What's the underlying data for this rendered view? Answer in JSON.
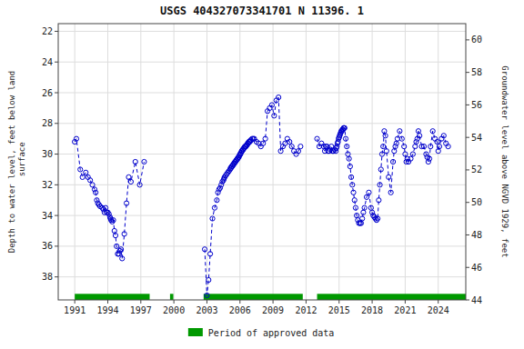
{
  "chart_data": {
    "type": "line",
    "title": "USGS 404327073341701 N 11396. 1",
    "ylabel": "Depth to water level, feet below land\n surface",
    "y2label": "Groundwater level above NGVD 1929, feet",
    "xlim": [
      1989.5,
      2026.5
    ],
    "xticks": [
      1991,
      1994,
      1997,
      2000,
      2003,
      2006,
      2009,
      2012,
      2015,
      2018,
      2021,
      2024
    ],
    "ylim": [
      39.5,
      21.5
    ],
    "yticks": [
      22,
      24,
      26,
      28,
      30,
      32,
      34,
      36,
      38
    ],
    "y2lim": [
      44.0,
      61.0
    ],
    "y2ticks": [
      44,
      46,
      48,
      50,
      52,
      54,
      56,
      58,
      60
    ],
    "grid": true,
    "legend": "bottom",
    "series": [
      {
        "color": "#0000cc",
        "marker": "circle",
        "line_style": "dashed",
        "x": [
          1991.0,
          1991.15,
          1991.5,
          1991.7,
          1992.0,
          1992.2,
          1992.4,
          1992.6,
          1992.8,
          1992.9,
          1993.0,
          1993.1,
          1993.2,
          1993.3,
          1993.5,
          1993.6,
          1993.7,
          1993.8,
          1993.9,
          1994.0,
          1994.1,
          1994.2,
          1994.25,
          1994.3,
          1994.4,
          1994.5,
          1994.6,
          1994.7,
          1994.8,
          1994.9,
          1995.0,
          1995.1,
          1995.2,
          1995.3,
          1995.5,
          1995.7,
          1995.9,
          1996.1,
          1996.5,
          1996.9,
          1997.3
        ],
        "values": [
          29.2,
          29.0,
          31.0,
          31.5,
          31.2,
          31.5,
          31.7,
          32.0,
          32.3,
          32.5,
          33.0,
          33.2,
          33.3,
          33.4,
          33.5,
          33.6,
          33.8,
          33.5,
          33.8,
          33.8,
          33.9,
          34.1,
          34.2,
          34.3,
          34.4,
          34.3,
          35.0,
          35.3,
          36.0,
          36.5,
          36.5,
          36.3,
          36.2,
          36.8,
          35.2,
          33.2,
          31.5,
          31.8,
          30.5,
          32.0,
          30.5
        ]
      },
      {
        "color": "#0000cc",
        "marker": "circle",
        "line_style": "dashed",
        "x": [
          2002.8,
          2003.0,
          2003.15,
          2003.3,
          2003.5,
          2003.7,
          2003.9,
          2004.0,
          2004.1,
          2004.2,
          2004.3,
          2004.4,
          2004.5,
          2004.55,
          2004.6,
          2004.7,
          2004.8,
          2004.9,
          2005.0,
          2005.1,
          2005.15,
          2005.2,
          2005.25,
          2005.3,
          2005.35,
          2005.4,
          2005.45,
          2005.5,
          2005.55,
          2005.6,
          2005.65,
          2005.7,
          2005.75,
          2005.8,
          2005.85,
          2005.9,
          2005.95,
          2006.0,
          2006.05,
          2006.1,
          2006.15,
          2006.2,
          2006.25,
          2006.3,
          2006.35,
          2006.4,
          2006.45,
          2006.5,
          2006.55,
          2006.6,
          2006.65,
          2006.7,
          2006.75,
          2006.8,
          2006.85,
          2006.9,
          2006.95,
          2007.0,
          2007.1,
          2007.2,
          2007.3,
          2007.5,
          2007.7,
          2007.9,
          2008.1,
          2008.3,
          2008.5,
          2008.7,
          2008.9,
          2009.1,
          2009.3,
          2009.5,
          2009.7,
          2009.9,
          2010.1,
          2010.3,
          2010.5,
          2010.7,
          2010.9,
          2011.1,
          2011.3,
          2011.5
        ],
        "values": [
          36.2,
          39.2,
          38.2,
          36.5,
          34.2,
          33.5,
          33.0,
          32.5,
          32.3,
          32.2,
          32.0,
          31.8,
          31.7,
          31.6,
          31.5,
          31.4,
          31.3,
          31.2,
          31.1,
          31.0,
          30.9,
          30.9,
          30.8,
          30.8,
          30.7,
          30.7,
          30.6,
          30.6,
          30.5,
          30.5,
          30.4,
          30.4,
          30.3,
          30.3,
          30.2,
          30.2,
          30.1,
          30.0,
          30.0,
          29.9,
          29.8,
          29.8,
          29.7,
          29.7,
          29.6,
          29.6,
          29.5,
          29.5,
          29.5,
          29.4,
          29.4,
          29.3,
          29.3,
          29.2,
          29.2,
          29.2,
          29.1,
          29.1,
          29.0,
          29.0,
          29.0,
          29.2,
          29.3,
          29.5,
          29.3,
          29.0,
          27.2,
          27.0,
          26.8,
          27.5,
          26.5,
          26.3,
          29.8,
          29.5,
          29.3,
          29.0,
          29.2,
          29.5,
          29.8,
          30.0,
          29.8,
          29.5
        ]
      },
      {
        "color": "#0000cc",
        "marker": "circle",
        "line_style": "dashed",
        "x": [
          2013.0,
          2013.2,
          2013.4,
          2013.6,
          2013.7,
          2013.8,
          2013.9,
          2014.0,
          2014.1,
          2014.2,
          2014.3,
          2014.4,
          2014.5,
          2014.6,
          2014.7,
          2014.75,
          2014.8,
          2014.85,
          2014.9,
          2014.95,
          2015.0,
          2015.05,
          2015.1,
          2015.15,
          2015.2,
          2015.25,
          2015.3,
          2015.35,
          2015.4,
          2015.45,
          2015.5,
          2015.6,
          2015.7,
          2015.8,
          2015.9,
          2016.0,
          2016.1,
          2016.2,
          2016.3,
          2016.4,
          2016.5,
          2016.6,
          2016.7,
          2016.8,
          2016.9,
          2017.0,
          2017.1,
          2017.2,
          2017.3,
          2017.5,
          2017.7,
          2017.9,
          2018.0,
          2018.1,
          2018.2,
          2018.3,
          2018.4,
          2018.5,
          2018.6,
          2018.7,
          2018.8,
          2018.9,
          2019.0,
          2019.1,
          2019.2,
          2019.3,
          2019.5,
          2019.7,
          2019.9,
          2020.0,
          2020.1,
          2020.2,
          2020.3,
          2020.5,
          2020.7,
          2020.9,
          2021.0,
          2021.1,
          2021.2,
          2021.3,
          2021.5,
          2021.7,
          2021.9,
          2022.0,
          2022.1,
          2022.2,
          2022.3,
          2022.5,
          2022.7,
          2022.9,
          2023.0,
          2023.1,
          2023.2,
          2023.3,
          2023.5,
          2023.7,
          2023.9,
          2024.0,
          2024.1,
          2024.3,
          2024.5,
          2024.7,
          2024.9
        ],
        "values": [
          29.0,
          29.5,
          29.3,
          29.5,
          29.8,
          29.5,
          29.5,
          29.8,
          29.8,
          29.7,
          29.5,
          29.8,
          29.8,
          29.7,
          29.8,
          29.6,
          29.5,
          29.3,
          29.2,
          29.0,
          28.9,
          28.8,
          28.7,
          28.6,
          28.5,
          28.5,
          28.4,
          28.4,
          28.3,
          28.3,
          28.3,
          29.0,
          29.5,
          30.0,
          30.3,
          30.8,
          31.5,
          32.0,
          32.5,
          33.0,
          33.5,
          34.0,
          34.3,
          34.5,
          34.5,
          34.5,
          34.2,
          33.8,
          33.5,
          32.8,
          32.5,
          33.5,
          33.8,
          34.0,
          34.1,
          34.2,
          34.3,
          34.2,
          33.0,
          32.0,
          31.0,
          30.0,
          29.5,
          28.5,
          28.8,
          29.8,
          31.5,
          32.5,
          30.5,
          29.8,
          29.5,
          29.3,
          29.0,
          28.5,
          29.0,
          29.5,
          30.0,
          30.5,
          30.3,
          30.5,
          30.3,
          30.0,
          29.5,
          29.2,
          29.0,
          28.5,
          28.8,
          29.5,
          29.5,
          30.0,
          30.2,
          30.5,
          30.3,
          29.5,
          28.5,
          29.0,
          29.2,
          29.8,
          29.5,
          29.0,
          28.8,
          29.3,
          29.5
        ]
      }
    ],
    "approved_periods": {
      "name": "Period of approved data",
      "color": "#009900",
      "ranges": [
        [
          1991.0,
          1997.8
        ],
        [
          1999.65,
          1999.95
        ],
        [
          2002.7,
          2011.7
        ],
        [
          2013.0,
          2026.5
        ]
      ]
    }
  }
}
